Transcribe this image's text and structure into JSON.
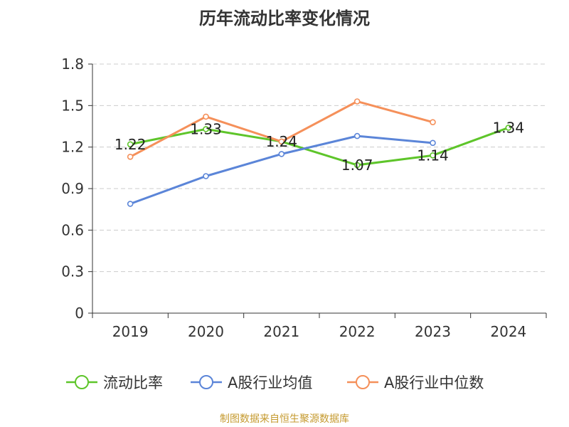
{
  "chart_data": {
    "type": "line",
    "title": "历年流动比率变化情况",
    "source": "制图数据来自恒生聚源数据库",
    "categories": [
      "2019",
      "2020",
      "2021",
      "2022",
      "2023",
      "2024"
    ],
    "y_ticks": [
      "0",
      "0.3",
      "0.6",
      "0.9",
      "1.2",
      "1.5",
      "1.8"
    ],
    "ylim": [
      0,
      1.8
    ],
    "grid": true,
    "legend_position": "bottom",
    "series": [
      {
        "name": "流动比率",
        "color": "#5ec52a",
        "values": [
          1.22,
          1.33,
          1.24,
          1.07,
          1.14,
          1.34
        ],
        "labels": [
          "1.22",
          "1.33",
          "1.24",
          "1.07",
          "1.14",
          "1.34"
        ]
      },
      {
        "name": "A股行业均值",
        "color": "#5b85d8",
        "values": [
          0.79,
          0.99,
          1.15,
          1.28,
          1.23,
          null
        ]
      },
      {
        "name": "A股行业中位数",
        "color": "#f5905a",
        "values": [
          1.13,
          1.42,
          1.24,
          1.53,
          1.38,
          null
        ]
      }
    ]
  }
}
